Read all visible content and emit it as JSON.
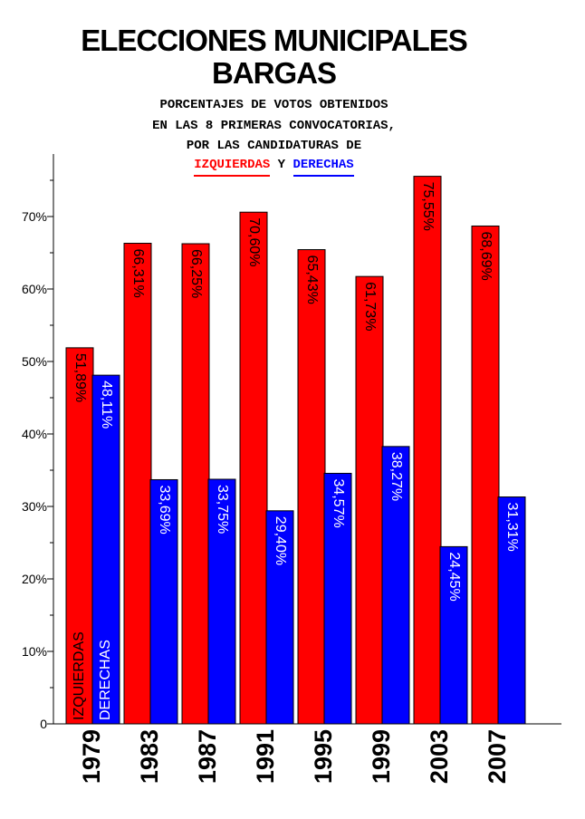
{
  "title_line1": "ELECCIONES MUNICIPALES",
  "title_line2": "BARGAS",
  "subtitle_line1": "PORCENTAJES DE VOTOS OBTENIDOS",
  "subtitle_line2": "EN LAS 8 PRIMERAS CONVOCATORIAS,",
  "subtitle_line3": "POR LAS CANDIDATURAS DE",
  "legend_izq": "IZQUIERDAS",
  "legend_y": " Y ",
  "legend_der": "DERECHAS",
  "colors": {
    "izquierdas": "#ff0000",
    "derechas": "#0000ff"
  },
  "chart_data": {
    "type": "bar",
    "categories": [
      "1979",
      "1983",
      "1987",
      "1991",
      "1995",
      "1999",
      "2003",
      "2007"
    ],
    "series": [
      {
        "name": "IZQUIERDAS",
        "values": [
          51.89,
          66.31,
          66.25,
          70.6,
          65.43,
          61.73,
          75.55,
          68.69
        ],
        "labels": [
          "51,89%",
          "66,31%",
          "66,25%",
          "70,60%",
          "65,43%",
          "61,73%",
          "75,55%",
          "68,69%"
        ]
      },
      {
        "name": "DERECHAS",
        "values": [
          48.11,
          33.69,
          33.75,
          29.4,
          34.57,
          38.27,
          24.45,
          31.31
        ],
        "labels": [
          "48,11%",
          "33,69%",
          "33,75%",
          "29,40%",
          "34,57%",
          "38,27%",
          "24,45%",
          "31,31%"
        ]
      }
    ],
    "in_bar_names": [
      "IZQUIERDAS",
      "DERECHAS"
    ],
    "yticks": [
      0,
      10,
      20,
      30,
      40,
      50,
      60,
      70
    ],
    "ytick_labels": [
      "0",
      "10%",
      "20%",
      "30%",
      "40%",
      "50%",
      "60%",
      "70%"
    ],
    "ylim": [
      0,
      78
    ],
    "grid": false,
    "legend": "top-center"
  }
}
